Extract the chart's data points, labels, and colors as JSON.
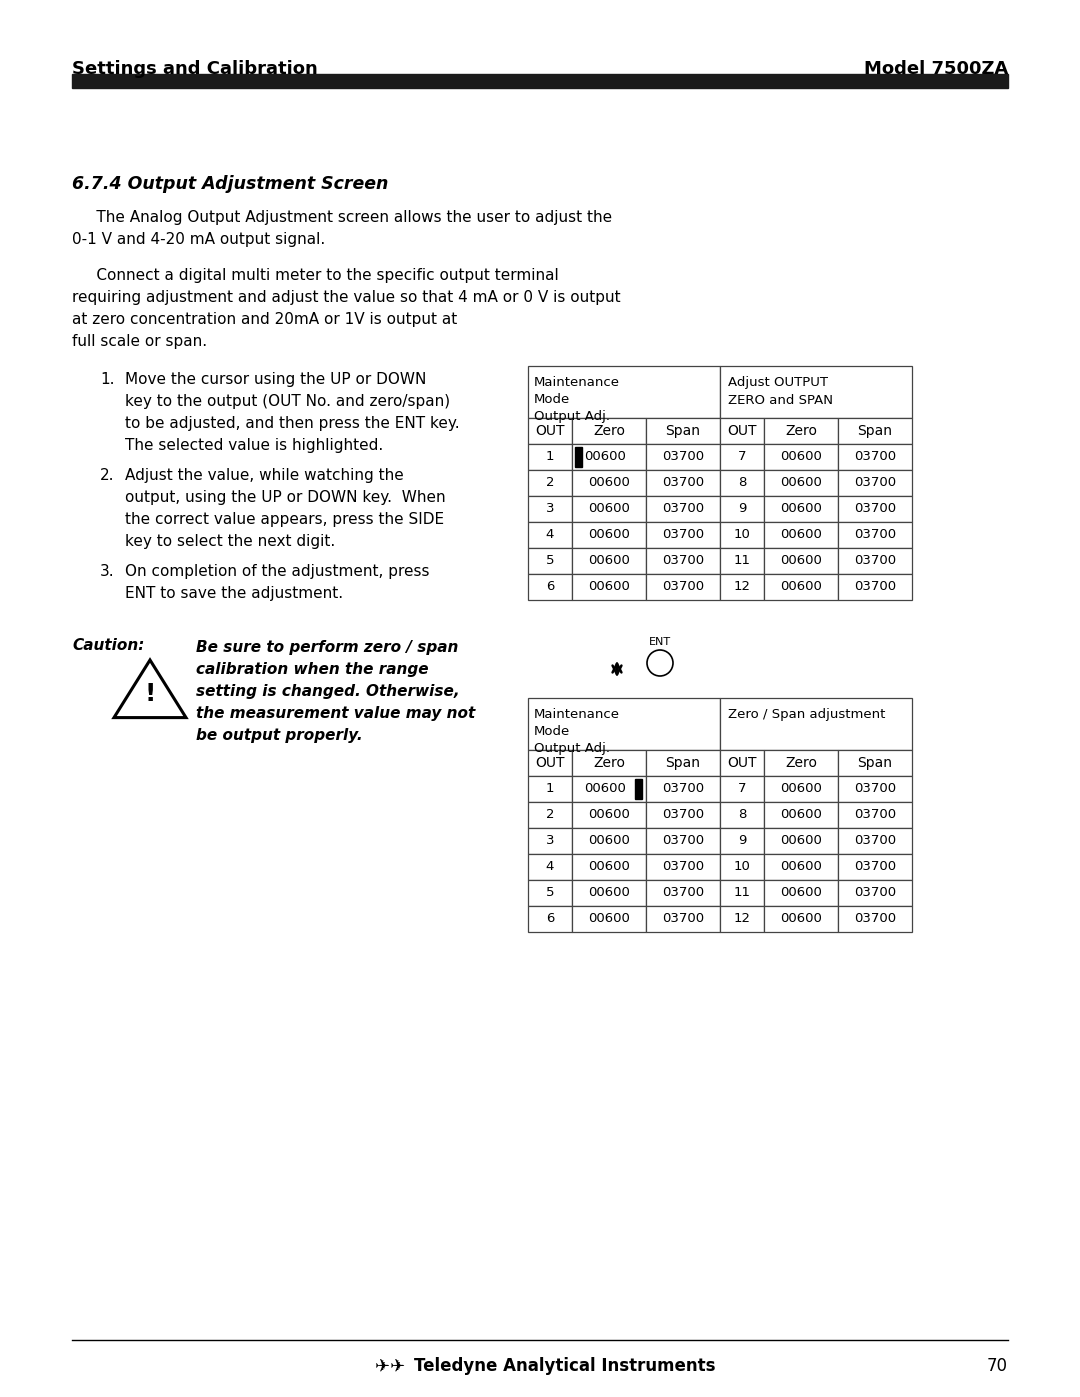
{
  "page_title_left": "Settings and Calibration",
  "page_title_right": "Model 7500ZA",
  "section_title": "6.7.4 Output Adjustment Screen",
  "para1_indent": "     The Analog Output Adjustment screen allows the user to adjust the",
  "para1_line2": "0-1 V and 4-20 mA output signal.",
  "para2_indent": "     Connect a digital multi meter to the specific output terminal",
  "para2_line2": "requiring adjustment and adjust the value so that 4 mA or 0 V is output",
  "para2_line3": "at zero concentration and 20mA or 1V is output at",
  "para2_line4": "full scale or span.",
  "list_items": [
    [
      "Move the cursor using the UP or DOWN",
      "key to the output (OUT No. and zero/span)",
      "to be adjusted, and then press the ENT key.",
      "The selected value is highlighted."
    ],
    [
      "Adjust the value, while watching the",
      "output, using the UP or DOWN key.  When",
      "the correct value appears, press the SIDE",
      "key to select the next digit."
    ],
    [
      "On completion of the adjustment, press",
      "ENT to save the adjustment."
    ]
  ],
  "caution_label": "Caution:",
  "caution_lines": [
    "Be sure to perform zero / span",
    "calibration when the range",
    "setting is changed. Otherwise,",
    "the measurement value may not",
    "be output properly."
  ],
  "table1_header_left": [
    "Maintenance",
    "Mode",
    "Output Adj."
  ],
  "table1_header_right": [
    "Adjust OUTPUT",
    "ZERO and SPAN"
  ],
  "table2_header_left": [
    "Maintenance",
    "Mode",
    "Output Adj."
  ],
  "table2_header_right": [
    "Zero / Span adjustment"
  ],
  "col_headers": [
    "OUT",
    "Zero",
    "Span",
    "OUT",
    "Zero",
    "Span"
  ],
  "table1_rows": [
    [
      "1",
      "00600",
      "03700",
      "7",
      "00600",
      "03700"
    ],
    [
      "2",
      "00600",
      "03700",
      "8",
      "00600",
      "03700"
    ],
    [
      "3",
      "00600",
      "03700",
      "9",
      "00600",
      "03700"
    ],
    [
      "4",
      "00600",
      "03700",
      "10",
      "00600",
      "03700"
    ],
    [
      "5",
      "00600",
      "03700",
      "11",
      "00600",
      "03700"
    ],
    [
      "6",
      "00600",
      "03700",
      "12",
      "00600",
      "03700"
    ]
  ],
  "table2_rows": [
    [
      "1",
      "00600",
      "03700",
      "7",
      "00600",
      "03700"
    ],
    [
      "2",
      "00600",
      "03700",
      "8",
      "00600",
      "03700"
    ],
    [
      "3",
      "00600",
      "03700",
      "9",
      "00600",
      "03700"
    ],
    [
      "4",
      "00600",
      "03700",
      "10",
      "00600",
      "03700"
    ],
    [
      "5",
      "00600",
      "03700",
      "11",
      "00600",
      "03700"
    ],
    [
      "6",
      "00600",
      "03700",
      "12",
      "00600",
      "03700"
    ]
  ],
  "footer_text": "Teledyne Analytical Instruments",
  "footer_page": "70",
  "bg_color": "#ffffff",
  "text_color": "#000000",
  "header_bar_color": "#1a1a1a",
  "table_line_color": "#444444"
}
